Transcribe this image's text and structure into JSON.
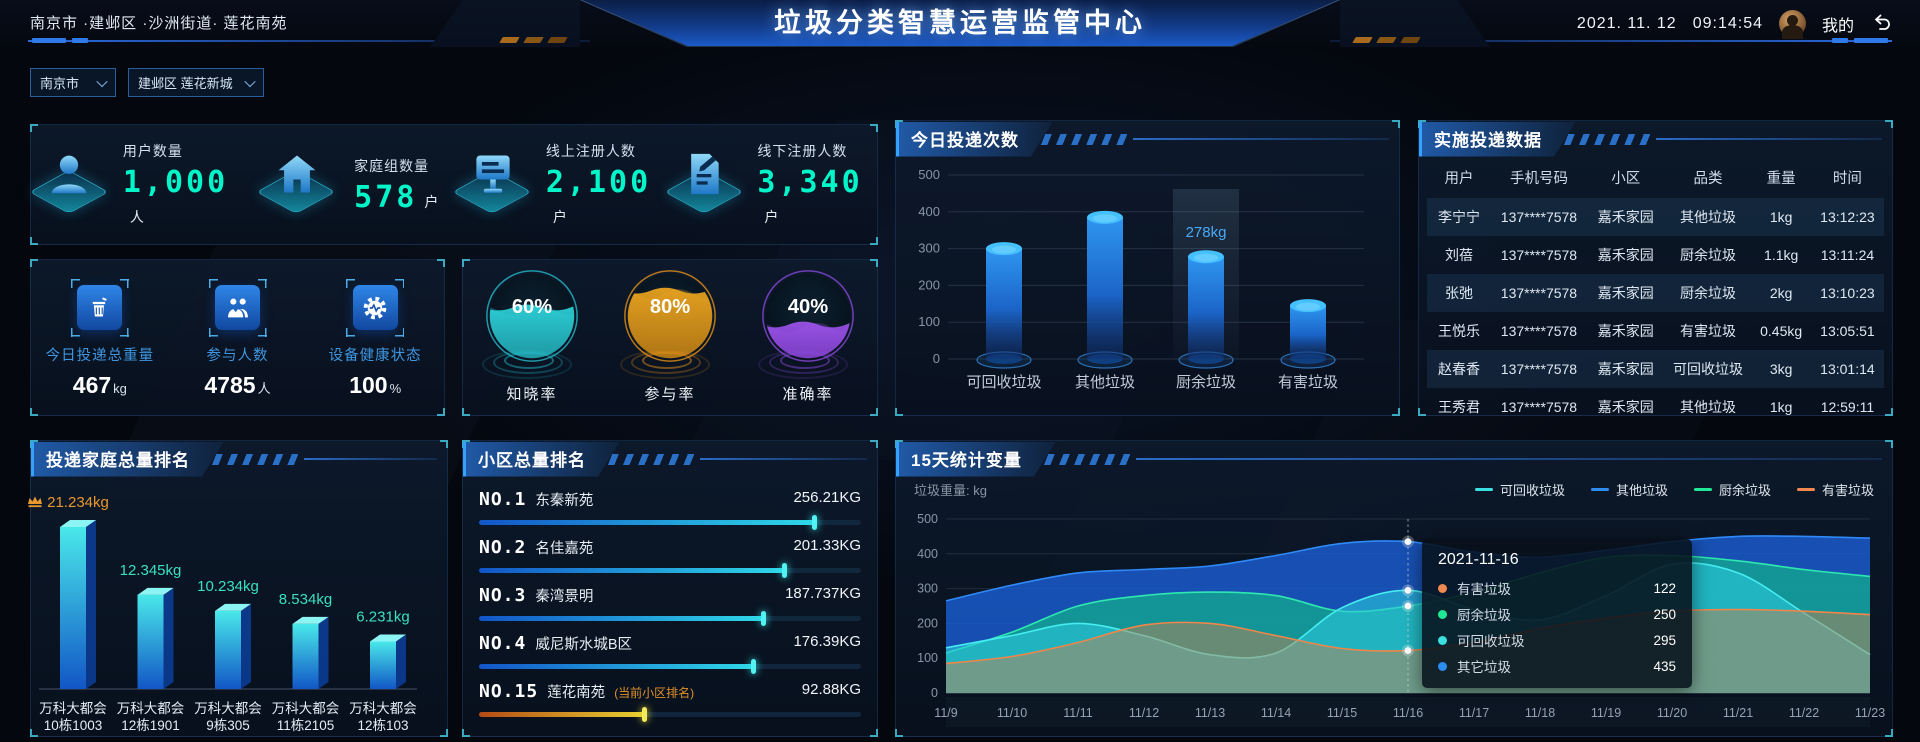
{
  "header": {
    "breadcrumb": "南京市 ·建邺区 ·沙洲街道· 莲花南苑",
    "title": "垃圾分类智慧运营监管中心",
    "date": "2021. 11. 12",
    "time": "09:14:54",
    "profile_label": "我的"
  },
  "filters": {
    "city": "南京市",
    "district": "建邺区 莲花新城"
  },
  "stats": [
    {
      "icon": "user-icon",
      "label": "用户数量",
      "value": "1,000",
      "unit": "人"
    },
    {
      "icon": "home-icon",
      "label": "家庭组数量",
      "value": "578",
      "unit": "户"
    },
    {
      "icon": "online-register-icon",
      "label": "线上注册人数",
      "value": "2,100",
      "unit": "户"
    },
    {
      "icon": "offline-register-icon",
      "label": "线下注册人数",
      "value": "3,340",
      "unit": "户"
    }
  ],
  "today_metrics": [
    {
      "icon": "trash-bin-icon",
      "label": "今日投递总重量",
      "value": "467",
      "unit": "kg"
    },
    {
      "icon": "participants-icon",
      "label": "参与人数",
      "value": "4785",
      "unit": "人"
    },
    {
      "icon": "device-health-icon",
      "label": "设备健康状态",
      "value": "100",
      "unit": "%"
    }
  ],
  "gauges": [
    {
      "percent": "60%",
      "label": "知晓率",
      "color_light": "#2fd8e0",
      "color_dark": "#0c5868",
      "ring": "#25b8c8"
    },
    {
      "percent": "80%",
      "label": "参与率",
      "color_light": "#f0a820",
      "color_dark": "#7a4a08",
      "ring": "#e09018"
    },
    {
      "percent": "40%",
      "label": "准确率",
      "color_light": "#a055f0",
      "color_dark": "#4a1c88",
      "ring": "#8848d8"
    }
  ],
  "table": {
    "title": "实施投递数据",
    "headers": [
      "用户",
      "手机号码",
      "小区",
      "品类",
      "重量",
      "时间"
    ],
    "col_widths": [
      "14%",
      "21%",
      "17%",
      "19%",
      "13%",
      "16%"
    ],
    "rows": [
      [
        "李宁宁",
        "137****7578",
        "嘉禾家园",
        "其他垃圾",
        "1kg",
        "13:12:23"
      ],
      [
        "刘蓓",
        "137****7578",
        "嘉禾家园",
        "厨余垃圾",
        "1.1kg",
        "13:11:24"
      ],
      [
        "张弛",
        "137****7578",
        "嘉禾家园",
        "厨余垃圾",
        "2kg",
        "13:10:23"
      ],
      [
        "王悦乐",
        "137****7578",
        "嘉禾家园",
        "有害垃圾",
        "0.45kg",
        "13:05:51"
      ],
      [
        "赵春香",
        "137****7578",
        "嘉禾家园",
        "可回收垃圾",
        "3kg",
        "13:01:14"
      ],
      [
        "王秀君",
        "137****7578",
        "嘉禾家园",
        "其他垃圾",
        "1kg",
        "12:59:11"
      ]
    ]
  },
  "chart_data": [
    {
      "id": "today_count",
      "type": "bar",
      "title": "今日投递次数",
      "categories": [
        "可回收垃圾",
        "其他垃圾",
        "厨余垃圾",
        "有害垃圾"
      ],
      "values": [
        300,
        385,
        278,
        145
      ],
      "highlight": {
        "index": 2,
        "label": "278kg"
      },
      "ylim": [
        0,
        500
      ],
      "yticks": [
        0,
        100,
        200,
        300,
        400,
        500
      ],
      "bar_color_top": "#45c0ff",
      "bar_color_body": "#2f96f0"
    },
    {
      "id": "family_rank",
      "type": "bar",
      "title": "投递家庭总量排名",
      "categories": [
        [
          "万科大都会",
          "10栋1003"
        ],
        [
          "万科大都会",
          "12栋1901"
        ],
        [
          "万科大都会",
          "9栋305"
        ],
        [
          "万科大都会",
          "11栋2105"
        ],
        [
          "万科大都会",
          "12栋103"
        ]
      ],
      "values": [
        21.234,
        12.345,
        10.234,
        8.534,
        6.231
      ],
      "value_labels": [
        "21.234kg",
        "12.345kg",
        "10.234kg",
        "8.534kg",
        "6.231kg"
      ],
      "first_color": "#e8982c",
      "other_color": "#3ae0c0",
      "crown_on_first": true
    },
    {
      "id": "community_rank",
      "type": "bar",
      "title": "小区总量排名",
      "items": [
        {
          "rank": "NO.1",
          "name": "东秦新苑",
          "note": "",
          "value": "256.21KG",
          "pct": 88,
          "theme": "blue"
        },
        {
          "rank": "NO.2",
          "name": "名佳嘉苑",
          "note": "",
          "value": "201.33KG",
          "pct": 80,
          "theme": "blue"
        },
        {
          "rank": "NO.3",
          "name": "秦湾景明",
          "note": "",
          "value": "187.737KG",
          "pct": 74.5,
          "theme": "blue"
        },
        {
          "rank": "NO.4",
          "name": "威尼斯水城B区",
          "note": "",
          "value": "176.39KG",
          "pct": 72,
          "theme": "blue"
        },
        {
          "rank": "NO.15",
          "name": "莲花南苑",
          "note": "(当前小区排名)",
          "value": "92.88KG",
          "pct": 43.5,
          "theme": "orange"
        }
      ]
    },
    {
      "id": "trend",
      "type": "area",
      "title": "15天统计变量",
      "ylabel": "垃圾重量: kg",
      "ylim": [
        0,
        500
      ],
      "yticks": [
        0,
        100,
        200,
        300,
        400,
        500
      ],
      "x": [
        "11/9",
        "11/10",
        "11/11",
        "11/12",
        "11/13",
        "11/14",
        "11/15",
        "11/16",
        "11/17",
        "11/18",
        "11/19",
        "11/20",
        "11/21",
        "11/22",
        "11/23"
      ],
      "legend": [
        {
          "name": "可回收垃圾",
          "color": "#3ae0e0"
        },
        {
          "name": "其他垃圾",
          "color": "#2d8cf0"
        },
        {
          "name": "厨余垃圾",
          "color": "#20e896"
        },
        {
          "name": "有害垃圾",
          "color": "#f08850"
        }
      ],
      "series": [
        {
          "name": "其他垃圾",
          "stroke": "#2e8af8",
          "fill": "#1a5fd6",
          "fill_opacity": 0.8,
          "values": [
            265,
            310,
            345,
            355,
            365,
            395,
            430,
            435,
            405,
            390,
            410,
            435,
            450,
            450,
            445
          ]
        },
        {
          "name": "厨余垃圾",
          "stroke": "#2ee8b0",
          "fill": "#12b08e",
          "fill_opacity": 0.72,
          "values": [
            115,
            175,
            250,
            280,
            290,
            280,
            235,
            250,
            290,
            345,
            390,
            395,
            380,
            355,
            335
          ]
        },
        {
          "name": "可回收垃圾",
          "stroke": "#45ecf0",
          "fill": "#2cc9dc",
          "fill_opacity": 0.6,
          "values": [
            130,
            165,
            200,
            165,
            110,
            115,
            245,
            295,
            240,
            210,
            280,
            370,
            345,
            230,
            110
          ]
        },
        {
          "name": "有害垃圾",
          "stroke": "#f08648",
          "fill": "#cf7f4a",
          "fill_opacity": 0.45,
          "values": [
            85,
            105,
            145,
            195,
            200,
            165,
            128,
            122,
            145,
            185,
            215,
            235,
            240,
            235,
            225
          ]
        }
      ],
      "tooltip": {
        "date": "2021-11-16",
        "x_index": 7,
        "rows": [
          {
            "name": "有害垃圾",
            "value": "122",
            "color": "#f08850"
          },
          {
            "name": "厨余垃圾",
            "value": "250",
            "color": "#20e896"
          },
          {
            "name": "可回收垃圾",
            "value": "295",
            "color": "#3ae0e0"
          },
          {
            "name": "其它垃圾",
            "value": "435",
            "color": "#2d8cf0"
          }
        ]
      }
    }
  ],
  "panel_titles": {
    "today_count": "今日投递次数",
    "realtime_table": "实施投递数据",
    "family_rank": "投递家庭总量排名",
    "community_rank": "小区总量排名",
    "trend": "15天统计变量"
  }
}
